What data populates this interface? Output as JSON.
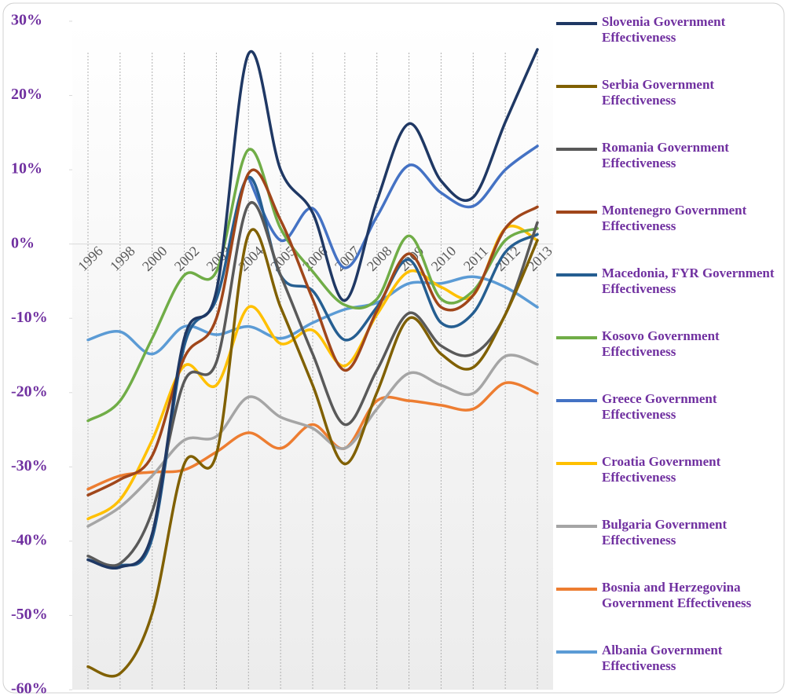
{
  "chart_data": {
    "type": "line",
    "categories": [
      "1996",
      "1998",
      "2000",
      "2002",
      "2003",
      "2004",
      "2005",
      "2006",
      "2007",
      "2008",
      "2009",
      "2010",
      "2011",
      "2012",
      "2013"
    ],
    "ylim": [
      -60,
      30
    ],
    "yticks": [
      {
        "value": 30,
        "label": "30%"
      },
      {
        "value": 20,
        "label": "20%"
      },
      {
        "value": 10,
        "label": "10%"
      },
      {
        "value": 0,
        "label": "0%"
      },
      {
        "value": -10,
        "label": "-10%"
      },
      {
        "value": -20,
        "label": "-20%"
      },
      {
        "value": -30,
        "label": "-30%"
      },
      {
        "value": -40,
        "label": "-40%"
      },
      {
        "value": -50,
        "label": "-50%"
      },
      {
        "value": -60,
        "label": "-60%"
      }
    ],
    "legend": "right",
    "series": [
      {
        "name": "Slovenia Government Effectiveness",
        "color": "#1f3864",
        "values": [
          -42.5,
          -43.5,
          -39,
          -12.7,
          -6.3,
          25.6,
          10,
          4.2,
          -7.6,
          5.8,
          16.2,
          8.5,
          6.3,
          16.4,
          26.2
        ]
      },
      {
        "name": "Serbia Government Effectiveness",
        "color": "#806000",
        "values": [
          -56.9,
          -57.8,
          -49.7,
          -29.6,
          -28.3,
          1.3,
          -8.5,
          -19,
          -29.6,
          -20,
          -10,
          -14.8,
          -16.6,
          -9.5,
          0.5
        ]
      },
      {
        "name": "Romania Government Effectiveness",
        "color": "#595959",
        "values": [
          -42,
          -43,
          -36,
          -18.5,
          -15.9,
          5.3,
          -4.2,
          -14.8,
          -24.3,
          -17,
          -9.3,
          -13.7,
          -14.8,
          -9.5,
          2.9
        ]
      },
      {
        "name": "Montenegro Government Effectiveness",
        "color": "#a0461a",
        "values": [
          -33.8,
          -31.7,
          -28.5,
          -15.3,
          -10,
          9.5,
          3.2,
          -7.4,
          -17,
          -9,
          -1.3,
          -8.5,
          -6.9,
          2.1,
          5
        ]
      },
      {
        "name": "Macedonia, FYR Government Effectiveness",
        "color": "#255e91",
        "values": [
          -42.5,
          -43.3,
          -39.6,
          -13.7,
          -7.4,
          9,
          -4.2,
          -6.3,
          -12.9,
          -8.5,
          -2.1,
          -10.6,
          -9.3,
          -1.1,
          1.3
        ]
      },
      {
        "name": "Kosovo Government Effectiveness",
        "color": "#70ad47",
        "values": [
          -23.8,
          -21.1,
          -12.7,
          -4.2,
          -3.7,
          12.7,
          2.1,
          -3.7,
          -8.2,
          -7.4,
          1.1,
          -7.4,
          -6.3,
          0.5,
          2.1
        ]
      },
      {
        "name": "Greece Government Effectiveness",
        "color": "#4472c4",
        "values": [
          null,
          null,
          null,
          null,
          null,
          9,
          0.5,
          4.8,
          -3.2,
          3.7,
          10.6,
          6.9,
          5.1,
          10,
          13.2
        ]
      },
      {
        "name": "Croatia Government Effectiveness",
        "color": "#ffc000",
        "values": [
          -37,
          -34.4,
          -26.4,
          -16.4,
          -19,
          -8.5,
          -13.4,
          -11.6,
          -16.4,
          -9.5,
          -3.7,
          -5.8,
          -6.9,
          2.1,
          0.5
        ]
      },
      {
        "name": "Bulgaria Government Effectiveness",
        "color": "#a5a5a5",
        "values": [
          -38,
          -35.4,
          -31.2,
          -26.4,
          -25.9,
          -20.6,
          -23.3,
          -24.8,
          -27.5,
          -22.2,
          -17.4,
          -19,
          -20.1,
          -15.1,
          -16.2
        ]
      },
      {
        "name": "Bosnia and Herzegovina Government Effectiveness",
        "color": "#ed7d31",
        "values": [
          -33,
          -31.2,
          -30.7,
          -30.4,
          -28,
          -25.4,
          -27.5,
          -24.3,
          -27.5,
          -21.1,
          -21.1,
          -21.7,
          -22.2,
          -18.7,
          -20.1
        ]
      },
      {
        "name": "Albania Government Effectiveness",
        "color": "#5b9bd5",
        "values": [
          -12.9,
          -11.8,
          -14.8,
          -11.1,
          -12.2,
          -11.1,
          -12.7,
          -10.6,
          -8.8,
          -7.9,
          -5.3,
          -5.3,
          -4.4,
          -5.8,
          -8.5
        ]
      }
    ]
  }
}
